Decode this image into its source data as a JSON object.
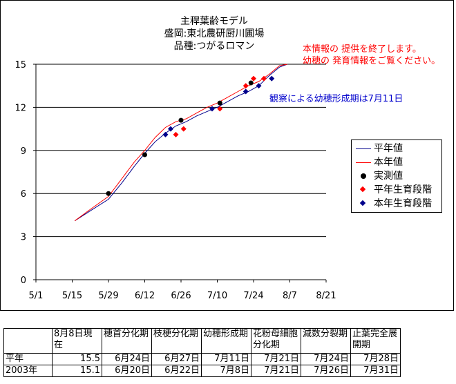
{
  "chart": {
    "title_lines": [
      "主稈葉齢モデル",
      "盛岡:東北農研厨川圃場",
      "品種:つがるロマン"
    ],
    "notice_lines": [
      "本情報の 提供を終了します。",
      "幼穂の 発育情報をご覧ください。"
    ],
    "annotation": "観察による幼穂形成期は7月11日",
    "colors": {
      "normal_year": "#00008b",
      "this_year": "#ff0000",
      "observed": "#000000",
      "normal_stage": "#ff0000",
      "this_stage": "#00008b",
      "notice": "#ff0000",
      "annotation": "#0000cc"
    },
    "legend": [
      {
        "label": "平年値",
        "kind": "line",
        "color": "#00008b"
      },
      {
        "label": "本年値",
        "kind": "line",
        "color": "#ff0000"
      },
      {
        "label": "実測値",
        "kind": "dot",
        "color": "#000000"
      },
      {
        "label": "平年生育段階",
        "kind": "diamond",
        "color": "#ff0000"
      },
      {
        "label": "本年生育段階",
        "kind": "diamond",
        "color": "#00008b"
      }
    ]
  },
  "chart_data": {
    "type": "line",
    "title": "主稈葉齢モデル",
    "subtitle": [
      "盛岡:東北農研厨川圃場",
      "品種:つがるロマン"
    ],
    "x_tick_labels": [
      "5/1",
      "5/15",
      "5/29",
      "6/12",
      "6/26",
      "7/10",
      "7/24",
      "8/7",
      "8/21"
    ],
    "xlim": [
      "5/1",
      "8/21"
    ],
    "y_ticks": [
      0,
      3,
      6,
      9,
      12,
      15
    ],
    "ylim": [
      0,
      15
    ],
    "grid": "horizontal",
    "legend_position": "right",
    "series": [
      {
        "name": "平年値",
        "type": "line",
        "points": [
          [
            "5/16",
            4.1
          ],
          [
            "5/22",
            4.8
          ],
          [
            "5/29",
            5.6
          ],
          [
            "6/3",
            6.7
          ],
          [
            "6/8",
            7.9
          ],
          [
            "6/12",
            8.8
          ],
          [
            "6/16",
            9.6
          ],
          [
            "6/20",
            10.2
          ],
          [
            "6/24",
            10.7
          ],
          [
            "6/28",
            11.0
          ],
          [
            "7/2",
            11.4
          ],
          [
            "7/6",
            11.7
          ],
          [
            "7/10",
            12.0
          ],
          [
            "7/14",
            12.4
          ],
          [
            "7/18",
            12.8
          ],
          [
            "7/22",
            13.1
          ],
          [
            "7/26",
            13.5
          ],
          [
            "7/30",
            14.2
          ],
          [
            "8/3",
            14.8
          ],
          [
            "8/6",
            15.0
          ]
        ]
      },
      {
        "name": "本年値",
        "type": "line",
        "points": [
          [
            "5/16",
            4.1
          ],
          [
            "5/22",
            4.9
          ],
          [
            "5/29",
            5.8
          ],
          [
            "6/3",
            7.0
          ],
          [
            "6/8",
            8.2
          ],
          [
            "6/12",
            9.0
          ],
          [
            "6/16",
            9.9
          ],
          [
            "6/20",
            10.6
          ],
          [
            "6/24",
            11.0
          ],
          [
            "6/28",
            11.2
          ],
          [
            "7/2",
            11.6
          ],
          [
            "7/6",
            12.0
          ],
          [
            "7/10",
            12.3
          ],
          [
            "7/14",
            12.7
          ],
          [
            "7/18",
            13.1
          ],
          [
            "7/22",
            13.5
          ],
          [
            "7/26",
            13.8
          ],
          [
            "7/30",
            14.3
          ],
          [
            "8/3",
            14.9
          ],
          [
            "8/6",
            15.0
          ]
        ]
      },
      {
        "name": "実測値",
        "type": "scatter",
        "points": [
          [
            "5/29",
            6.0
          ],
          [
            "6/12",
            8.7
          ],
          [
            "6/26",
            11.1
          ],
          [
            "7/11",
            12.3
          ],
          [
            "7/23",
            13.7
          ]
        ]
      },
      {
        "name": "平年生育段階",
        "type": "scatter",
        "points": [
          [
            "6/24",
            10.1
          ],
          [
            "6/27",
            10.5
          ],
          [
            "7/11",
            11.9
          ],
          [
            "7/21",
            13.5
          ],
          [
            "7/24",
            14.0
          ],
          [
            "7/28",
            14.0
          ]
        ]
      },
      {
        "name": "本年生育段階",
        "type": "scatter",
        "points": [
          [
            "6/20",
            10.1
          ],
          [
            "6/22",
            10.5
          ],
          [
            "7/8",
            11.9
          ],
          [
            "7/21",
            13.1
          ],
          [
            "7/26",
            13.5
          ],
          [
            "7/31",
            14.0
          ]
        ]
      }
    ]
  },
  "table": {
    "headers": [
      "",
      "8月8日現在",
      "穂首分化期",
      "枝梗分化期",
      "幼穂形成期",
      "花粉母細胞分化期",
      "減数分裂期",
      "止葉完全展開期"
    ],
    "rows": [
      [
        "平年",
        "15.5",
        "6月24日",
        "6月27日",
        "7月11日",
        "7月21日",
        "7月24日",
        "7月28日"
      ],
      [
        "2003年",
        "15.1",
        "6月20日",
        "6月22日",
        "7月8日",
        "7月21日",
        "7月26日",
        "7月31日"
      ]
    ]
  }
}
